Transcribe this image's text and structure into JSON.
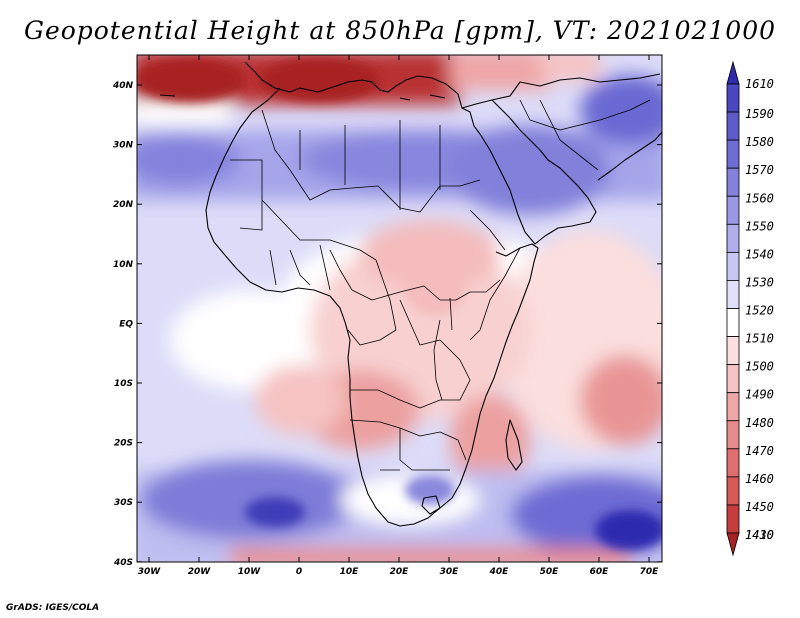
{
  "title": "Geopotential Height at 850hPa [gpm], VT: 2021021000",
  "footer": "GrADS: IGES/COLA",
  "colors": {
    "dark_red": "#a82222",
    "white": "#ffffff",
    "dark_blue": "#2e2ba8"
  },
  "map": {
    "lon_range": [
      -30,
      75
    ],
    "lat_range": [
      -40,
      45
    ],
    "lon_ticks": [
      "30W",
      "20W",
      "10W",
      "0",
      "10E",
      "20E",
      "30E",
      "40E",
      "50E",
      "60E",
      "70E"
    ],
    "lat_ticks": [
      "40N",
      "30N",
      "20N",
      "10N",
      "EQ",
      "10S",
      "20S",
      "30S",
      "40S"
    ]
  },
  "colorbar": {
    "levels": [
      {
        "label": "1610",
        "color": "#2f2bb0"
      },
      {
        "label": "1590",
        "color": "#4a47c2"
      },
      {
        "label": "1580",
        "color": "#5d5acc"
      },
      {
        "label": "1570",
        "color": "#6f6cd6"
      },
      {
        "label": "1560",
        "color": "#8482dd"
      },
      {
        "label": "1550",
        "color": "#9a98e4"
      },
      {
        "label": "1540",
        "color": "#b0afec"
      },
      {
        "label": "1530",
        "color": "#c7c7f3"
      },
      {
        "label": "1520",
        "color": "#e0e0fa"
      },
      {
        "label": "1510",
        "color": "#ffffff"
      },
      {
        "label": "1500",
        "color": "#fbdede"
      },
      {
        "label": "1490",
        "color": "#f6c2c2"
      },
      {
        "label": "1480",
        "color": "#efa6a6"
      },
      {
        "label": "1470",
        "color": "#e88a8a"
      },
      {
        "label": "1460",
        "color": "#e06e6e"
      },
      {
        "label": "1450",
        "color": "#d85858"
      },
      {
        "label": "1430",
        "color": "#c73d3d"
      },
      {
        "label": "1410",
        "color": "#a82222"
      }
    ]
  }
}
